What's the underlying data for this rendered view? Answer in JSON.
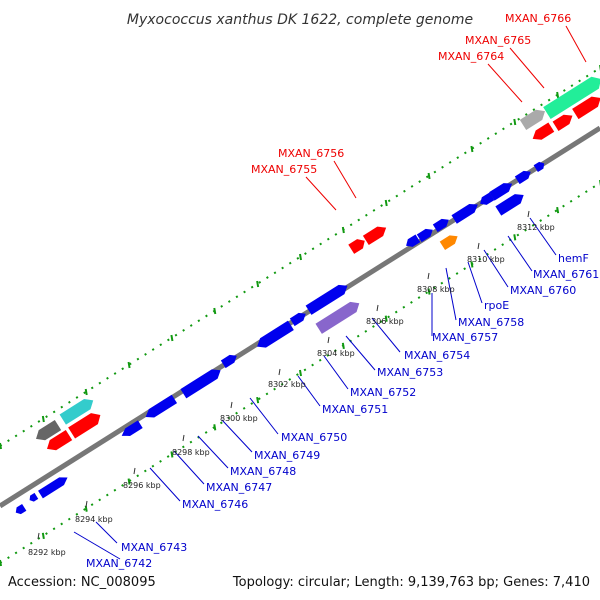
{
  "title": "Myxococcus xanthus DK 1622, complete genome",
  "accession": "Accession: NC_008095",
  "topology_summary": "Topology: circular; Length: 9,139,763 bp; Genes: 7,410",
  "colors": {
    "plus_strand_cds": "#0000ee",
    "minus_strand_cds": "#0000ee",
    "highlighted_cds": "#ff0000",
    "rna_gene": "#ff8800",
    "tRNA": "#33cccc",
    "pseudogene": "#8866cc",
    "other_gray": "#aaaaaa",
    "backbone": "#777777",
    "gc_dots": "#119911"
  },
  "scale_ticks": [
    "8292 kbp",
    "8294 kbp",
    "8296 kbp",
    "8298 kbp",
    "8300 kbp",
    "8302 kbp",
    "8304 kbp",
    "8306 kbp",
    "8308 kbp",
    "8310 kbp",
    "8312 kbp"
  ],
  "gene_labels_bottom": [
    "MXAN_6742",
    "MXAN_6743",
    "MXAN_6746",
    "MXAN_6747",
    "MXAN_6748",
    "MXAN_6749",
    "MXAN_6750",
    "MXAN_6751",
    "MXAN_6752",
    "MXAN_6753",
    "MXAN_6754",
    "MXAN_6757",
    "MXAN_6758",
    "rpoE",
    "MXAN_6760",
    "MXAN_6761",
    "hemF"
  ],
  "gene_labels_top": [
    "MXAN_6755",
    "MXAN_6756",
    "MXAN_6764",
    "MXAN_6765",
    "MXAN_6766"
  ]
}
